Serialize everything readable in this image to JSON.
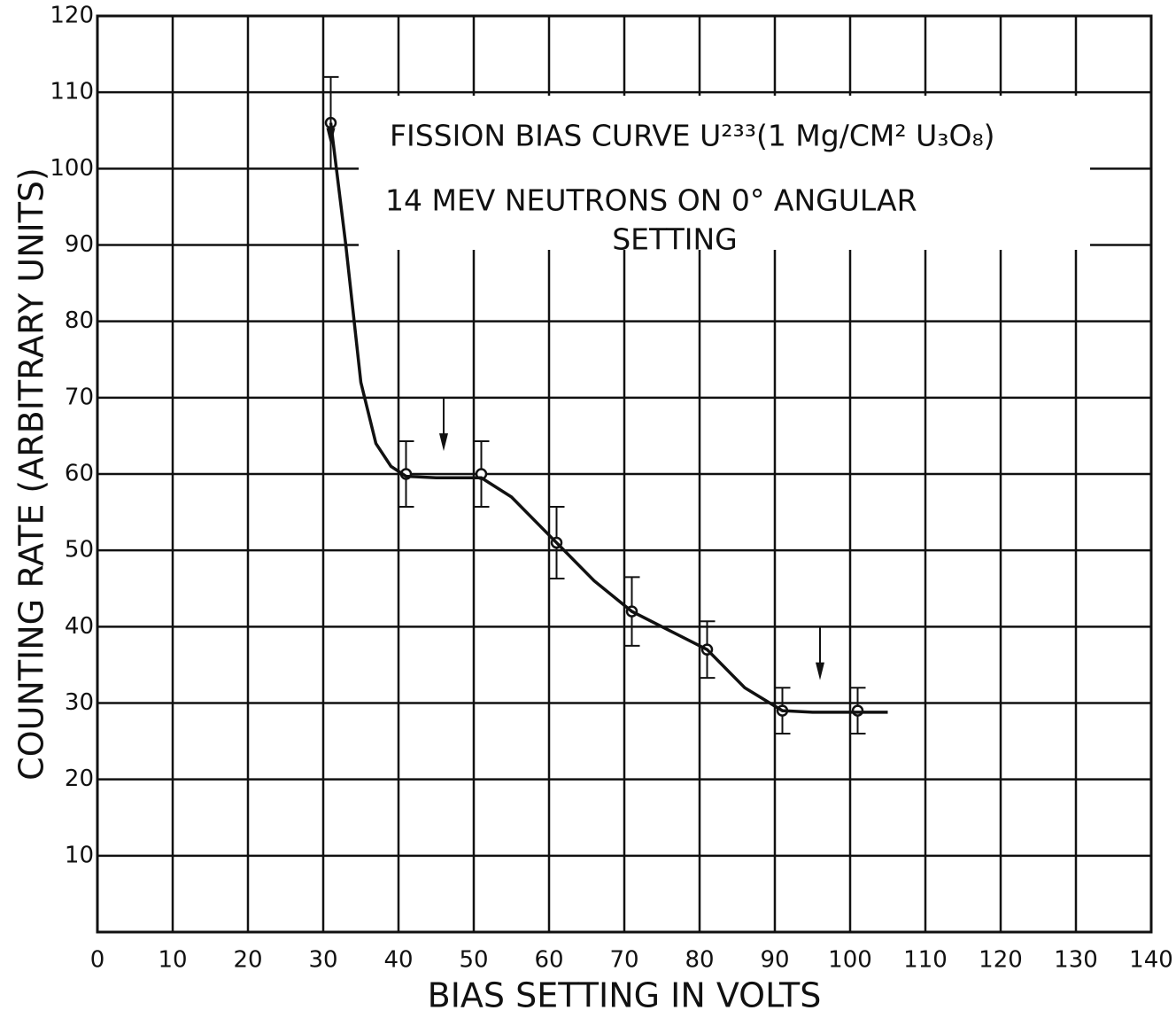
{
  "chart_data": {
    "type": "scatter",
    "title": "FISSION BIAS CURVE U²³³(1 Mg/CM² U₃O₈)",
    "subtitle": [
      "14 MEV NEUTRONS ON 0° ANGULAR",
      "SETTING"
    ],
    "x_label": "BIAS SETTING IN VOLTS",
    "y_label": "COUNTING RATE (ARBITRARY UNITS)",
    "xlim": [
      0,
      140
    ],
    "ylim": [
      0,
      120
    ],
    "xticks": [
      0,
      10,
      20,
      30,
      40,
      50,
      60,
      70,
      80,
      90,
      100,
      110,
      120,
      130,
      140
    ],
    "yticks": [
      10,
      20,
      30,
      40,
      50,
      60,
      70,
      80,
      90,
      100,
      110,
      120
    ],
    "grid": true,
    "color": "#111111",
    "series": [
      {
        "type": "scatter",
        "x": [
          31,
          41,
          51,
          61,
          71,
          81,
          91,
          101
        ],
        "values": [
          106,
          60,
          60,
          51,
          42,
          37,
          29,
          29
        ],
        "errors": [
          6,
          4.3,
          4.3,
          4.7,
          4.5,
          3.7,
          3,
          3
        ]
      },
      {
        "type": "line",
        "x": [
          31,
          33,
          35,
          37,
          39,
          41,
          45,
          51,
          55,
          61,
          66,
          71,
          76,
          81,
          86,
          91,
          95,
          105
        ],
        "values": [
          106,
          90,
          72,
          64,
          61,
          59.7,
          59.5,
          59.5,
          57,
          51,
          46,
          42,
          39.5,
          37,
          32,
          29,
          28.8,
          28.8
        ]
      }
    ],
    "arrows": [
      {
        "x": 31,
        "values": [
          112,
          103
        ]
      },
      {
        "x": 46,
        "values": [
          70,
          63
        ]
      },
      {
        "x": 96,
        "values": [
          40,
          33
        ]
      }
    ]
  }
}
